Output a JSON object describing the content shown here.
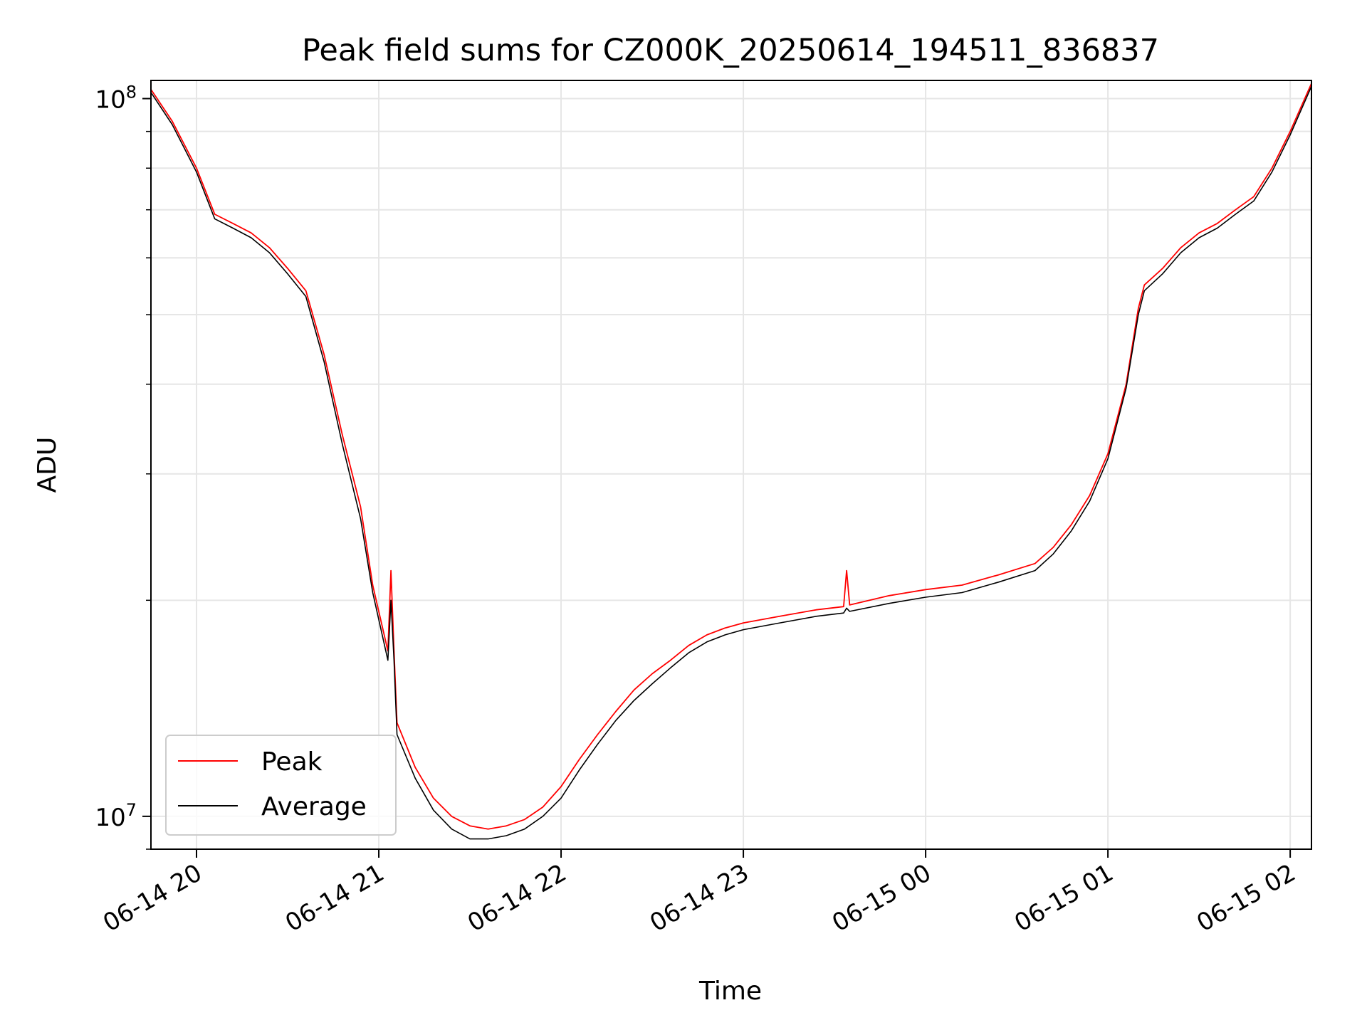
{
  "chart_data": {
    "type": "line",
    "title": "Peak field sums for CZ000K_20250614_194511_836837",
    "xlabel": "Time",
    "ylabel": "ADU",
    "y_scale": "log",
    "grid": true,
    "legend_position": "lower-left",
    "xlim": [
      "2025-06-14 19:45",
      "2025-06-15 02:07"
    ],
    "ylim": [
      9000000,
      106000000
    ],
    "x_ticks": [
      "06-14 20",
      "06-14 21",
      "06-14 22",
      "06-14 23",
      "06-15 00",
      "06-15 01",
      "06-15 02"
    ],
    "x_tick_values": [
      "2025-06-14 20:00",
      "2025-06-14 21:00",
      "2025-06-14 22:00",
      "2025-06-14 23:00",
      "2025-06-15 00:00",
      "2025-06-15 01:00",
      "2025-06-15 02:00"
    ],
    "y_major_ticks": [
      {
        "value": 10000000,
        "base": "10",
        "exp": "7"
      },
      {
        "value": 100000000,
        "base": "10",
        "exp": "8"
      }
    ],
    "series": [
      {
        "name": "Peak",
        "color": "#ff0000",
        "x": [
          "2025-06-14 19:45",
          "2025-06-14 19:52",
          "2025-06-14 20:00",
          "2025-06-14 20:06",
          "2025-06-14 20:12",
          "2025-06-14 20:18",
          "2025-06-14 20:24",
          "2025-06-14 20:30",
          "2025-06-14 20:36",
          "2025-06-14 20:42",
          "2025-06-14 20:48",
          "2025-06-14 20:54",
          "2025-06-14 20:58",
          "2025-06-14 21:03",
          "2025-06-14 21:04",
          "2025-06-14 21:05",
          "2025-06-14 21:06",
          "2025-06-14 21:12",
          "2025-06-14 21:18",
          "2025-06-14 21:24",
          "2025-06-14 21:30",
          "2025-06-14 21:36",
          "2025-06-14 21:42",
          "2025-06-14 21:48",
          "2025-06-14 21:54",
          "2025-06-14 22:00",
          "2025-06-14 22:06",
          "2025-06-14 22:12",
          "2025-06-14 22:18",
          "2025-06-14 22:24",
          "2025-06-14 22:30",
          "2025-06-14 22:36",
          "2025-06-14 22:42",
          "2025-06-14 22:48",
          "2025-06-14 22:54",
          "2025-06-14 23:00",
          "2025-06-14 23:12",
          "2025-06-14 23:24",
          "2025-06-14 23:33",
          "2025-06-14 23:34",
          "2025-06-14 23:35",
          "2025-06-14 23:48",
          "2025-06-15 00:00",
          "2025-06-15 00:12",
          "2025-06-15 00:24",
          "2025-06-15 00:36",
          "2025-06-15 00:42",
          "2025-06-15 00:48",
          "2025-06-15 00:54",
          "2025-06-15 01:00",
          "2025-06-15 01:06",
          "2025-06-15 01:10",
          "2025-06-15 01:12",
          "2025-06-15 01:18",
          "2025-06-15 01:24",
          "2025-06-15 01:30",
          "2025-06-15 01:36",
          "2025-06-15 01:42",
          "2025-06-15 01:48",
          "2025-06-15 01:54",
          "2025-06-15 02:00",
          "2025-06-15 02:07"
        ],
        "values": [
          103000000,
          93000000,
          80000000,
          69000000,
          67000000,
          65000000,
          62000000,
          58000000,
          54000000,
          44000000,
          34000000,
          27000000,
          21000000,
          17000000,
          22000000,
          17000000,
          13500000,
          11700000,
          10600000,
          10000000,
          9700000,
          9600000,
          9700000,
          9900000,
          10300000,
          11000000,
          12000000,
          13000000,
          14000000,
          15000000,
          15800000,
          16500000,
          17300000,
          17900000,
          18300000,
          18600000,
          19000000,
          19400000,
          19600000,
          22000000,
          19700000,
          20300000,
          20700000,
          21000000,
          21700000,
          22500000,
          23700000,
          25500000,
          28000000,
          32000000,
          40000000,
          51000000,
          55000000,
          58000000,
          62000000,
          65000000,
          67000000,
          70000000,
          73000000,
          80000000,
          90000000,
          105000000
        ]
      },
      {
        "name": "Average",
        "color": "#000000",
        "x": [
          "2025-06-14 19:45",
          "2025-06-14 19:52",
          "2025-06-14 20:00",
          "2025-06-14 20:06",
          "2025-06-14 20:12",
          "2025-06-14 20:18",
          "2025-06-14 20:24",
          "2025-06-14 20:30",
          "2025-06-14 20:36",
          "2025-06-14 20:42",
          "2025-06-14 20:48",
          "2025-06-14 20:54",
          "2025-06-14 20:58",
          "2025-06-14 21:03",
          "2025-06-14 21:04",
          "2025-06-14 21:05",
          "2025-06-14 21:06",
          "2025-06-14 21:12",
          "2025-06-14 21:18",
          "2025-06-14 21:24",
          "2025-06-14 21:30",
          "2025-06-14 21:36",
          "2025-06-14 21:42",
          "2025-06-14 21:48",
          "2025-06-14 21:54",
          "2025-06-14 22:00",
          "2025-06-14 22:06",
          "2025-06-14 22:12",
          "2025-06-14 22:18",
          "2025-06-14 22:24",
          "2025-06-14 22:30",
          "2025-06-14 22:36",
          "2025-06-14 22:42",
          "2025-06-14 22:48",
          "2025-06-14 22:54",
          "2025-06-14 23:00",
          "2025-06-14 23:12",
          "2025-06-14 23:24",
          "2025-06-14 23:33",
          "2025-06-14 23:34",
          "2025-06-14 23:35",
          "2025-06-14 23:48",
          "2025-06-15 00:00",
          "2025-06-15 00:12",
          "2025-06-15 00:24",
          "2025-06-15 00:36",
          "2025-06-15 00:42",
          "2025-06-15 00:48",
          "2025-06-15 00:54",
          "2025-06-15 01:00",
          "2025-06-15 01:06",
          "2025-06-15 01:10",
          "2025-06-15 01:12",
          "2025-06-15 01:18",
          "2025-06-15 01:24",
          "2025-06-15 01:30",
          "2025-06-15 01:36",
          "2025-06-15 01:42",
          "2025-06-15 01:48",
          "2025-06-15 01:54",
          "2025-06-15 02:00",
          "2025-06-15 02:07"
        ],
        "values": [
          102000000,
          92000000,
          79000000,
          68000000,
          66000000,
          64000000,
          61000000,
          57000000,
          53000000,
          43000000,
          33000000,
          26000000,
          20500000,
          16500000,
          20000000,
          16500000,
          13000000,
          11300000,
          10200000,
          9600000,
          9300000,
          9300000,
          9400000,
          9600000,
          10000000,
          10600000,
          11600000,
          12600000,
          13600000,
          14500000,
          15300000,
          16100000,
          16900000,
          17500000,
          17900000,
          18200000,
          18600000,
          19000000,
          19200000,
          19500000,
          19300000,
          19800000,
          20200000,
          20500000,
          21200000,
          22000000,
          23200000,
          25000000,
          27500000,
          31500000,
          39500000,
          50000000,
          54000000,
          57000000,
          61000000,
          64000000,
          66000000,
          69000000,
          72000000,
          79000000,
          89000000,
          104000000
        ]
      }
    ]
  }
}
